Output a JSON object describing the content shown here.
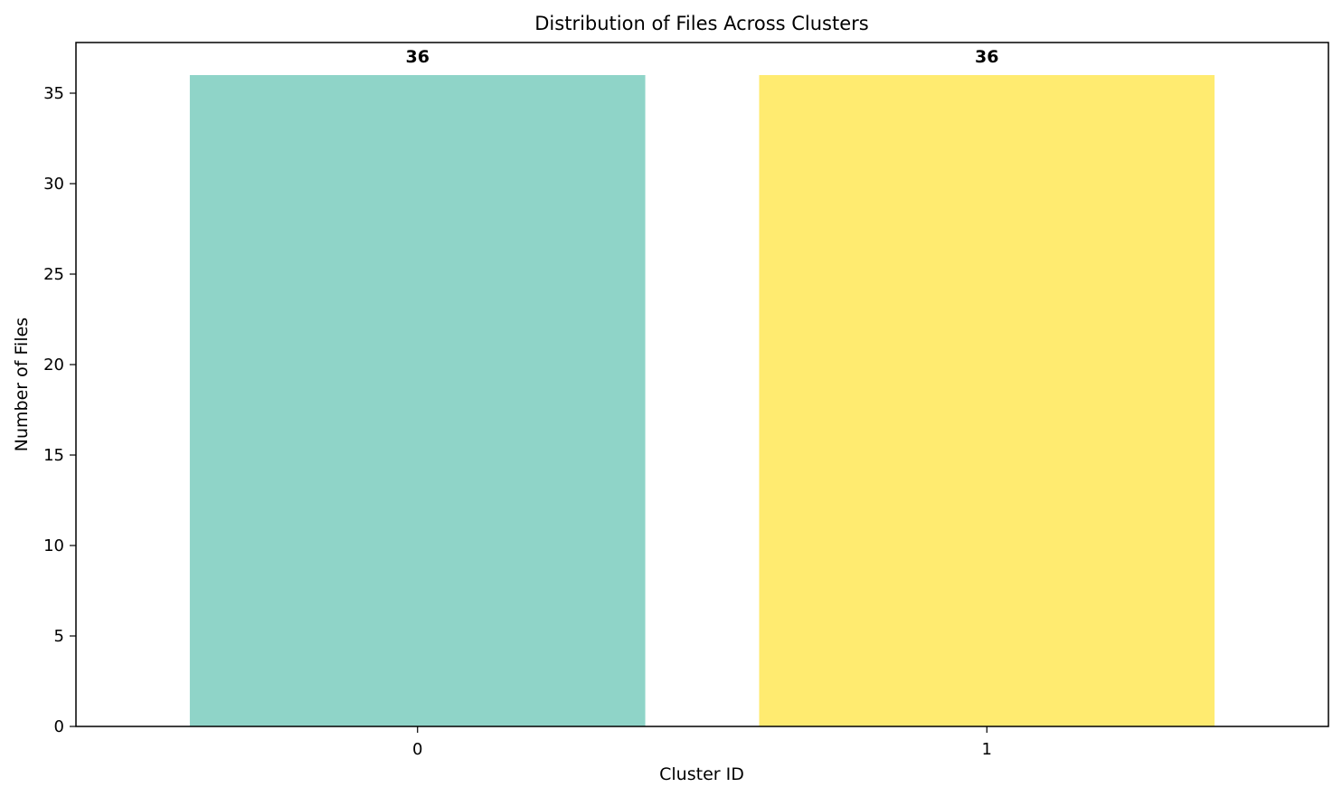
{
  "chart_data": {
    "type": "bar",
    "title": "Distribution of Files Across Clusters",
    "xlabel": "Cluster ID",
    "ylabel": "Number of Files",
    "categories": [
      "0",
      "1"
    ],
    "values": [
      36,
      36
    ],
    "data_labels": [
      "36",
      "36"
    ],
    "bar_colors": [
      "#8fd4c8",
      "#ffeb70"
    ],
    "ylim": [
      0,
      37.8
    ],
    "yticks": [
      0,
      5,
      10,
      15,
      20,
      25,
      30,
      35
    ],
    "ytick_labels": [
      "0",
      "5",
      "10",
      "15",
      "20",
      "25",
      "30",
      "35"
    ],
    "grid": false,
    "legend": "none"
  }
}
